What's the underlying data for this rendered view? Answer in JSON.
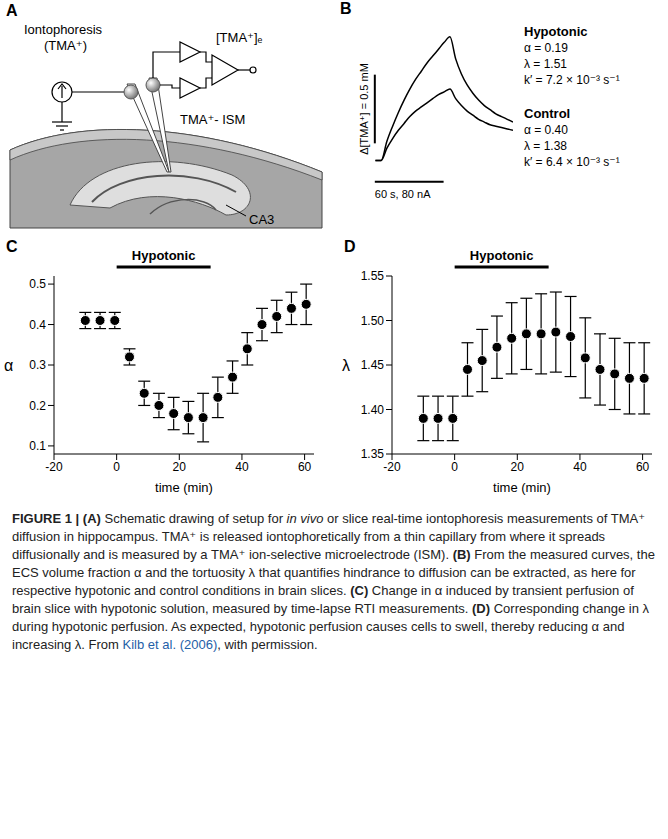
{
  "panel_letters": [
    "A",
    "B",
    "C",
    "D"
  ],
  "schematic": {
    "source_label": "Iontophoresis",
    "ion_label": "(TMA⁺)",
    "output_label": "[TMA⁺]ₑ",
    "electrode_label": "TMA⁺- ISM",
    "region_label": "CA3"
  },
  "chart_data": [
    {
      "type": "line",
      "tick_labels": false,
      "xlim": [
        -8,
        115
      ],
      "ylim": [
        -0.2,
        0.95
      ],
      "x": [
        -5,
        0,
        5,
        10,
        15,
        20,
        25,
        30,
        35,
        40,
        45,
        50,
        55,
        60,
        65,
        70,
        75,
        80,
        85,
        90,
        95,
        100,
        105,
        110,
        115
      ],
      "series": [
        {
          "name": "Hypotonic",
          "color": "#000000",
          "line_style": "solid",
          "values": [
            0,
            0,
            0.14,
            0.25,
            0.35,
            0.44,
            0.52,
            0.59,
            0.65,
            0.71,
            0.76,
            0.81,
            0.86,
            0.9,
            0.74,
            0.63,
            0.55,
            0.49,
            0.44,
            0.4,
            0.37,
            0.34,
            0.32,
            0.3,
            0.28
          ],
          "annotations": [
            "α = 0.19",
            "λ = 1.51",
            "k′ = 7.2 × 10⁻³ s⁻¹"
          ]
        },
        {
          "name": "Control",
          "color": "#000000",
          "line_style": "solid",
          "values": [
            0,
            0,
            0.09,
            0.16,
            0.22,
            0.27,
            0.32,
            0.36,
            0.39,
            0.42,
            0.45,
            0.48,
            0.5,
            0.52,
            0.45,
            0.4,
            0.36,
            0.33,
            0.3,
            0.28,
            0.26,
            0.25,
            0.24,
            0.23,
            0.22
          ],
          "annotations": [
            "α = 0.40",
            "λ = 1.38",
            "k′ = 6.4 × 10⁻³ s⁻¹"
          ]
        }
      ],
      "scale_bars": {
        "y": {
          "value": 0.5,
          "label": "Δ[TMA⁺] = 0.5 mM"
        },
        "x": {
          "value": 60,
          "label": "60 s, 80 nA"
        }
      }
    },
    {
      "type": "scatter",
      "x_label": "time (min)",
      "y_label": "α",
      "xlim": [
        -20,
        63
      ],
      "xticks": [
        -20,
        0,
        20,
        40,
        60
      ],
      "ylim": [
        0.08,
        0.52
      ],
      "yticks": [
        0.1,
        0.2,
        0.3,
        0.4,
        0.5
      ],
      "color": "#000000",
      "marker": "o",
      "line_style": "none",
      "x": [
        -10,
        -5.3,
        -0.6,
        4.1,
        8.8,
        13.5,
        18.2,
        22.9,
        27.6,
        32.3,
        37,
        41.7,
        46.4,
        51.1,
        55.8,
        60.5
      ],
      "values": [
        0.41,
        0.41,
        0.41,
        0.32,
        0.23,
        0.2,
        0.18,
        0.17,
        0.17,
        0.22,
        0.27,
        0.34,
        0.4,
        0.42,
        0.44,
        0.45
      ],
      "errors": [
        0.02,
        0.02,
        0.02,
        0.02,
        0.03,
        0.03,
        0.04,
        0.04,
        0.06,
        0.05,
        0.04,
        0.04,
        0.04,
        0.04,
        0.04,
        0.05
      ],
      "annotations": [
        {
          "text": "Hypotonic",
          "x_start": 0,
          "x_end": 30
        }
      ]
    },
    {
      "type": "scatter",
      "x_label": "time (min)",
      "y_label": "λ",
      "xlim": [
        -20,
        63
      ],
      "xticks": [
        -20,
        0,
        20,
        40,
        60
      ],
      "ylim": [
        1.35,
        1.55
      ],
      "yticks": [
        1.35,
        {
          "value": 1.4,
          "label": "1.40"
        },
        1.45,
        {
          "value": 1.5,
          "label": "1.50"
        },
        1.55
      ],
      "color": "#000000",
      "marker": "o",
      "line_style": "none",
      "x": [
        -10,
        -5.3,
        -0.6,
        4.1,
        8.8,
        13.5,
        18.2,
        22.9,
        27.6,
        32.3,
        37,
        41.7,
        46.4,
        51.1,
        55.8,
        60.5
      ],
      "values": [
        1.39,
        1.39,
        1.39,
        1.445,
        1.455,
        1.47,
        1.48,
        1.485,
        1.485,
        1.487,
        1.482,
        1.458,
        1.445,
        1.44,
        1.435,
        1.435
      ],
      "errors": [
        0.025,
        0.025,
        0.025,
        0.03,
        0.035,
        0.035,
        0.04,
        0.04,
        0.045,
        0.045,
        0.045,
        0.045,
        0.04,
        0.04,
        0.04,
        0.04
      ],
      "annotations": [
        {
          "text": "Hypotonic",
          "x_start": 0,
          "x_end": 30
        }
      ]
    }
  ],
  "caption": [
    {
      "text": "FIGURE 1 | ",
      "style": "bold"
    },
    {
      "text": "(A)",
      "style": "bold"
    },
    {
      "text": " Schematic drawing of setup for ",
      "style": "plain"
    },
    {
      "text": "in vivo",
      "style": "italic"
    },
    {
      "text": " or slice real-time iontophoresis measurements of TMA⁺ diffusion in hippocampus. TMA⁺ is released iontophoretically from a thin capillary from where it spreads diffusionally and is measured by a TMA⁺ ion-selective microelectrode (ISM). ",
      "style": "plain"
    },
    {
      "text": "(B)",
      "style": "bold"
    },
    {
      "text": " From the measured curves, the ECS volume fraction α and the tortuosity λ that quantifies hindrance to diffusion can be extracted, as here for respective hypotonic and control conditions in brain slices. ",
      "style": "plain"
    },
    {
      "text": "(C)",
      "style": "bold"
    },
    {
      "text": " Change in α induced by transient perfusion of brain slice with hypotonic solution, measured by time-lapse RTI measurements. ",
      "style": "plain"
    },
    {
      "text": "(D)",
      "style": "bold"
    },
    {
      "text": " Corresponding change in λ during hypotonic perfusion. As expected, hypotonic perfusion causes cells to swell, thereby reducing α and increasing λ. From ",
      "style": "plain"
    },
    {
      "text": "Kilb et al. (2006)",
      "style": "link"
    },
    {
      "text": ", with permission.",
      "style": "plain"
    }
  ]
}
